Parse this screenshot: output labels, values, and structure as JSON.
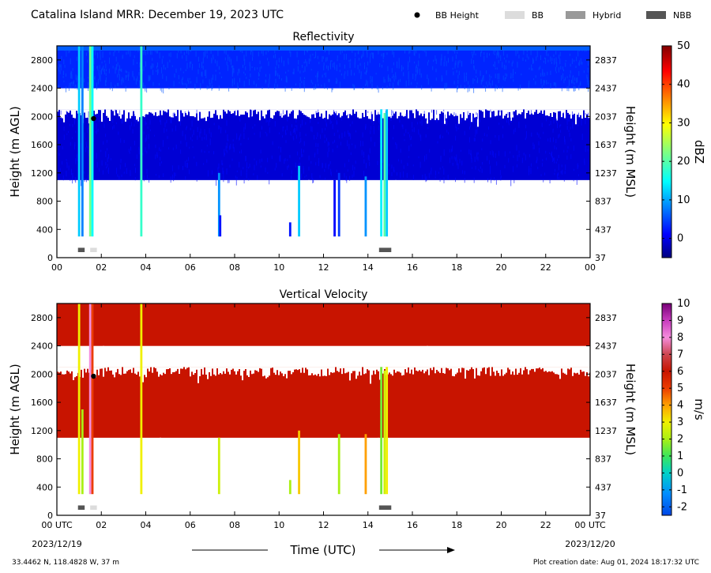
{
  "header": {
    "title": "Catalina Island MRR:  December 19, 2023 UTC",
    "legend": [
      {
        "label": "BB Height",
        "kind": "dot",
        "color": "#000000"
      },
      {
        "label": "BB",
        "kind": "box",
        "color": "#dcdcdc"
      },
      {
        "label": "Hybrid",
        "kind": "box",
        "color": "#999999"
      },
      {
        "label": "NBB",
        "kind": "box",
        "color": "#555555"
      }
    ]
  },
  "chart_data": [
    {
      "type": "heatmap",
      "title": "Reflectivity",
      "xlabel": "",
      "ylabel": "Height (m AGL)",
      "ylabel_right": "Height (m MSL)",
      "xlim": [
        0,
        24
      ],
      "ylim": [
        0,
        3000
      ],
      "x_ticks": [
        "00",
        "02",
        "04",
        "06",
        "08",
        "10",
        "12",
        "14",
        "16",
        "18",
        "20",
        "22",
        "00"
      ],
      "y_ticks": [
        0,
        400,
        800,
        1200,
        1600,
        2000,
        2400,
        2800
      ],
      "y_ticks_right": [
        37,
        437,
        837,
        1237,
        1637,
        2037,
        2437,
        2837
      ],
      "colorbar": {
        "label": "dBZ",
        "range": [
          -5,
          50
        ],
        "ticks": [
          0,
          10,
          20,
          30,
          40,
          50
        ],
        "colormap": "jet"
      },
      "bands": [
        {
          "y": [
            2400,
            3000
          ],
          "value": 3,
          "ragged": true
        },
        {
          "y": [
            1100,
            2100
          ],
          "value": -1,
          "ragged": true
        }
      ],
      "streaks": [
        {
          "x": 1.0,
          "y": [
            300,
            3000
          ],
          "value": 12
        },
        {
          "x": 1.15,
          "y": [
            300,
            3000
          ],
          "value": 8
        },
        {
          "x": 1.5,
          "y": [
            300,
            3000
          ],
          "value": 22
        },
        {
          "x": 1.6,
          "y": [
            300,
            3000
          ],
          "value": 15
        },
        {
          "x": 3.8,
          "y": [
            300,
            3000
          ],
          "value": 18
        },
        {
          "x": 7.3,
          "y": [
            300,
            1200
          ],
          "value": 9
        },
        {
          "x": 7.35,
          "y": [
            300,
            600
          ],
          "value": 2
        },
        {
          "x": 10.9,
          "y": [
            300,
            1300
          ],
          "value": 12
        },
        {
          "x": 10.5,
          "y": [
            300,
            500
          ],
          "value": 2
        },
        {
          "x": 12.5,
          "y": [
            300,
            1100
          ],
          "value": 1
        },
        {
          "x": 12.7,
          "y": [
            300,
            1200
          ],
          "value": 4
        },
        {
          "x": 13.9,
          "y": [
            300,
            1150
          ],
          "value": 9
        },
        {
          "x": 14.6,
          "y": [
            300,
            2100
          ],
          "value": 14
        },
        {
          "x": 14.75,
          "y": [
            300,
            2050
          ],
          "value": 20
        },
        {
          "x": 14.85,
          "y": [
            300,
            2100
          ],
          "value": 12
        }
      ],
      "bb_height": [
        {
          "x": 1.65,
          "y": 1970
        }
      ],
      "bb_markers": [
        {
          "x": [
            0.95,
            1.25
          ],
          "type": "NBB"
        },
        {
          "x": [
            1.5,
            1.8
          ],
          "type": "BB"
        },
        {
          "x": [
            14.5,
            15.05
          ],
          "type": "NBB"
        }
      ]
    },
    {
      "type": "heatmap",
      "title": "Vertical Velocity",
      "xlabel": "Time (UTC)",
      "ylabel": "Height (m AGL)",
      "ylabel_right": "Height (m MSL)",
      "xlim": [
        0,
        24
      ],
      "ylim": [
        0,
        3000
      ],
      "x_ticks": [
        "00 UTC",
        "02",
        "04",
        "06",
        "08",
        "10",
        "12",
        "14",
        "16",
        "18",
        "20",
        "22",
        "00 UTC"
      ],
      "x_dates": [
        "2023/12/19",
        "2023/12/20"
      ],
      "y_ticks": [
        0,
        400,
        800,
        1200,
        1600,
        2000,
        2400,
        2800
      ],
      "y_ticks_right": [
        37,
        437,
        837,
        1237,
        1637,
        2037,
        2437,
        2837
      ],
      "colorbar": {
        "label": "m/s",
        "range": [
          -2.5,
          10
        ],
        "ticks": [
          -2,
          -1,
          0,
          1,
          2,
          3,
          4,
          5,
          6,
          7,
          8,
          9,
          10
        ],
        "colormap": "velocity"
      },
      "bands": [
        {
          "y": [
            2400,
            3000
          ],
          "value": 6,
          "ragged": true
        },
        {
          "y": [
            1100,
            2100
          ],
          "value": 6,
          "ragged": true
        }
      ],
      "streaks": [
        {
          "x": 1.0,
          "y": [
            300,
            3000
          ],
          "value": 3
        },
        {
          "x": 1.15,
          "y": [
            300,
            1500
          ],
          "value": 2
        },
        {
          "x": 1.5,
          "y": [
            300,
            3000
          ],
          "value": 8
        },
        {
          "x": 1.6,
          "y": [
            300,
            3000
          ],
          "value": 5
        },
        {
          "x": 3.8,
          "y": [
            300,
            3000
          ],
          "value": 3
        },
        {
          "x": 7.3,
          "y": [
            300,
            1100
          ],
          "value": 2.5
        },
        {
          "x": 10.9,
          "y": [
            300,
            1200
          ],
          "value": 3.5
        },
        {
          "x": 10.5,
          "y": [
            300,
            500
          ],
          "value": 2
        },
        {
          "x": 12.7,
          "y": [
            300,
            1150
          ],
          "value": 2
        },
        {
          "x": 13.9,
          "y": [
            300,
            1150
          ],
          "value": 4
        },
        {
          "x": 14.6,
          "y": [
            300,
            2100
          ],
          "value": 1.5
        },
        {
          "x": 14.75,
          "y": [
            300,
            2050
          ],
          "value": 2.5
        },
        {
          "x": 14.85,
          "y": [
            300,
            2100
          ],
          "value": 3
        }
      ],
      "bb_height": [
        {
          "x": 1.65,
          "y": 1970
        }
      ],
      "bb_markers": [
        {
          "x": [
            0.95,
            1.25
          ],
          "type": "NBB"
        },
        {
          "x": [
            1.5,
            1.8
          ],
          "type": "BB"
        },
        {
          "x": [
            14.5,
            15.05
          ],
          "type": "NBB"
        }
      ]
    }
  ],
  "footer": {
    "location": "33.4462 N, 118.4828 W, 37 m",
    "creation": "Plot creation date: Aug 01, 2024 18:17:32 UTC"
  }
}
